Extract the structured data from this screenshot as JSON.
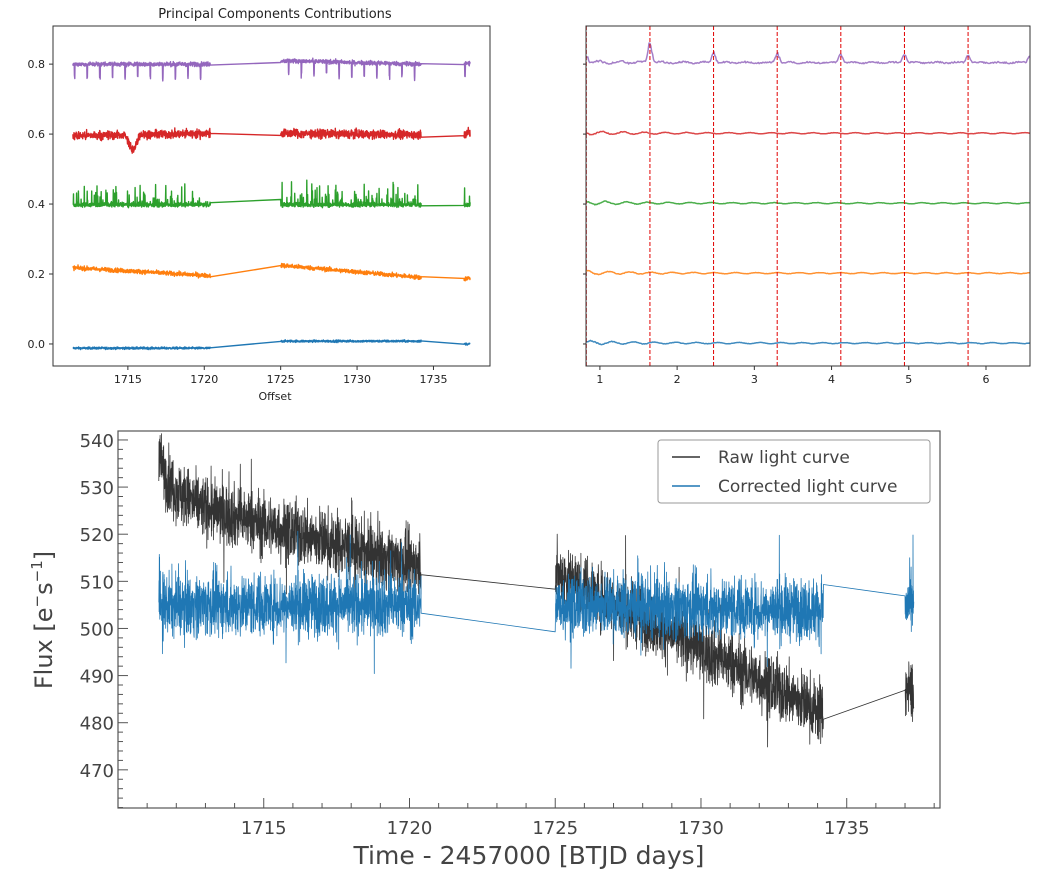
{
  "chart_data": [
    {
      "type": "line",
      "title": "Principal Components Contributions",
      "xlabel": "Offset",
      "ylabel": "",
      "xlim": [
        1710.1,
        1738.7
      ],
      "ylim": [
        -0.063,
        0.909
      ],
      "xticks": [
        "1715",
        "1720",
        "1725",
        "1730",
        "1735"
      ],
      "yticks": [
        "0.0",
        "0.2",
        "0.4",
        "0.6",
        "0.8"
      ],
      "grid": false,
      "segments_x": [
        [
          1711.4,
          1720.4
        ],
        [
          1725.0,
          1734.2
        ],
        [
          1737.0,
          1737.4
        ]
      ],
      "series": [
        {
          "color": "#1f77b4",
          "offset": 0.0,
          "levels": [
            [
              -0.012,
              -0.012
            ],
            [
              0.008,
              0.008
            ],
            [
              0.0,
              0.0
            ]
          ],
          "noise": 0.003
        },
        {
          "color": "#ff7f0e",
          "offset": 0.2,
          "levels": [
            [
              0.218,
              0.195
            ],
            [
              0.225,
              0.19
            ],
            [
              0.185,
              0.19
            ]
          ],
          "noise": 0.006
        },
        {
          "color": "#2ca02c",
          "offset": 0.4,
          "levels": [
            [
              0.398,
              0.398
            ],
            [
              0.398,
              0.398
            ],
            [
              0.398,
              0.398
            ]
          ],
          "noise": 0.006,
          "spikes": "up"
        },
        {
          "color": "#d62728",
          "offset": 0.6,
          "levels": [
            [
              0.595,
              0.602
            ],
            [
              0.602,
              0.598
            ],
            [
              0.603,
              0.603
            ]
          ],
          "noise": 0.012,
          "dip": [
            1715.3,
            0.51
          ]
        },
        {
          "color": "#9467bd",
          "offset": 0.8,
          "levels": [
            [
              0.8,
              0.8
            ],
            [
              0.81,
              0.8
            ],
            [
              0.802,
              0.802
            ]
          ],
          "noise": 0.006,
          "periodic_dips": {
            "period": 0.824,
            "depth": 0.045
          }
        }
      ]
    },
    {
      "type": "line",
      "title": "",
      "xlabel": "",
      "xlim": [
        0.82,
        6.57
      ],
      "ylim": [
        -0.063,
        0.909
      ],
      "xticks": [
        "1",
        "2",
        "3",
        "4",
        "5",
        "6"
      ],
      "grid": false,
      "vlines": {
        "color": "#e00000",
        "style": "dashed",
        "x": [
          0.824,
          1.648,
          2.472,
          3.296,
          4.12,
          4.944,
          5.768
        ]
      },
      "series": [
        {
          "color": "#1f77b4",
          "offset": 0.0
        },
        {
          "color": "#ff7f0e",
          "offset": 0.2
        },
        {
          "color": "#2ca02c",
          "offset": 0.4
        },
        {
          "color": "#d62728",
          "offset": 0.6
        },
        {
          "color": "#9467bd",
          "offset": 0.8,
          "peaks": [
            [
              0.824,
              0.02
            ],
            [
              1.648,
              0.065
            ],
            [
              2.472,
              0.03
            ],
            [
              3.296,
              0.03
            ],
            [
              4.12,
              0.025
            ],
            [
              4.944,
              0.027
            ],
            [
              5.768,
              0.022
            ],
            [
              6.57,
              0.02
            ]
          ]
        }
      ]
    },
    {
      "type": "line",
      "title": "",
      "xlabel": "Time - 2457000 [BTJD days]",
      "ylabel": "Flux [e⁻s⁻¹]",
      "ylabel_main": "Flux [e",
      "ylabel_sup1": "−",
      "ylabel_mid": "s",
      "ylabel_sup2": "−1",
      "ylabel_end": "]",
      "xlim": [
        1710.0,
        1738.2
      ],
      "ylim": [
        461.9,
        541.9
      ],
      "xticks": [
        "1715",
        "1720",
        "1725",
        "1730",
        "1735"
      ],
      "yticks": [
        "470",
        "480",
        "490",
        "500",
        "510",
        "520",
        "530",
        "540"
      ],
      "grid": false,
      "legend": "top-right",
      "segments_x": [
        [
          1711.4,
          1720.4
        ],
        [
          1725.0,
          1734.2
        ],
        [
          1737.0,
          1737.3
        ]
      ],
      "series": [
        {
          "name": "Raw light curve",
          "color": "#333333",
          "levels": [
            [
              528,
              513
            ],
            [
              512,
              482
            ],
            [
              487,
              487
            ]
          ],
          "noise": 6.5
        },
        {
          "name": "Corrected light curve",
          "color": "#1f77b4",
          "levels": [
            [
              505,
              505
            ],
            [
              505,
              504
            ],
            [
              505,
              505
            ]
          ],
          "noise": 6.5
        }
      ]
    }
  ]
}
